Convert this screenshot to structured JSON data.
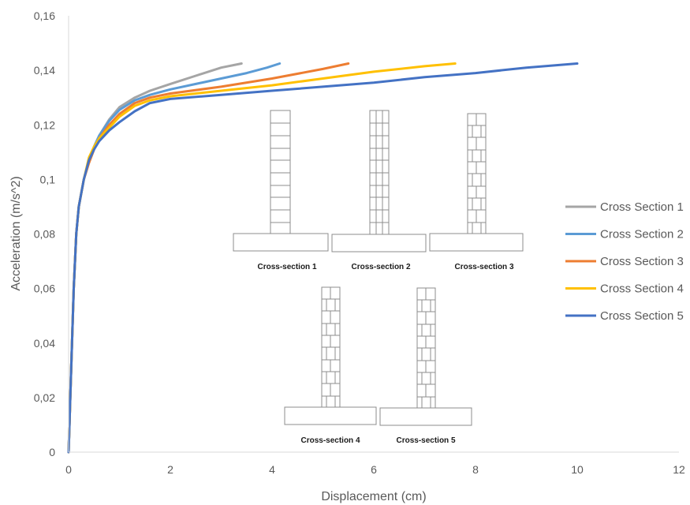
{
  "chart_data": {
    "type": "line",
    "title": "",
    "xlabel": "Displacement (cm)",
    "ylabel": "Acceleration (m/s^2)",
    "xlim": [
      0,
      12
    ],
    "ylim": [
      0,
      0.16
    ],
    "x_ticks": [
      0,
      2,
      4,
      6,
      8,
      10,
      12
    ],
    "x_tick_labels": [
      "0",
      "2",
      "4",
      "6",
      "8",
      "10",
      "12"
    ],
    "y_ticks": [
      0,
      0.02,
      0.04,
      0.06,
      0.08,
      0.1,
      0.12,
      0.14,
      0.16
    ],
    "y_tick_labels": [
      "0",
      "0,02",
      "0,04",
      "0,06",
      "0,08",
      "0,1",
      "0,12",
      "0,14",
      "0,16"
    ],
    "grid": false,
    "legend_position": "right",
    "series": [
      {
        "name": "Cross Section 1",
        "color": "#a5a5a5",
        "points": [
          [
            0,
            0
          ],
          [
            0.05,
            0.03
          ],
          [
            0.1,
            0.06
          ],
          [
            0.15,
            0.08
          ],
          [
            0.2,
            0.09
          ],
          [
            0.3,
            0.1
          ],
          [
            0.4,
            0.107
          ],
          [
            0.5,
            0.112
          ],
          [
            0.6,
            0.116
          ],
          [
            0.8,
            0.122
          ],
          [
            1.0,
            0.1265
          ],
          [
            1.3,
            0.13
          ],
          [
            1.6,
            0.1325
          ],
          [
            2.0,
            0.135
          ],
          [
            2.5,
            0.138
          ],
          [
            3.0,
            0.141
          ],
          [
            3.4,
            0.1425
          ]
        ]
      },
      {
        "name": "Cross Section 2",
        "color": "#5b9bd5",
        "points": [
          [
            0,
            0
          ],
          [
            0.05,
            0.03
          ],
          [
            0.1,
            0.06
          ],
          [
            0.15,
            0.08
          ],
          [
            0.2,
            0.09
          ],
          [
            0.3,
            0.1
          ],
          [
            0.4,
            0.107
          ],
          [
            0.5,
            0.112
          ],
          [
            0.6,
            0.116
          ],
          [
            0.8,
            0.1215
          ],
          [
            1.0,
            0.1255
          ],
          [
            1.3,
            0.129
          ],
          [
            1.6,
            0.131
          ],
          [
            2.0,
            0.133
          ],
          [
            2.5,
            0.135
          ],
          [
            3.0,
            0.137
          ],
          [
            3.5,
            0.139
          ],
          [
            3.9,
            0.141
          ],
          [
            4.15,
            0.1425
          ]
        ]
      },
      {
        "name": "Cross Section 3",
        "color": "#ed7d31",
        "points": [
          [
            0,
            0
          ],
          [
            0.05,
            0.03
          ],
          [
            0.1,
            0.06
          ],
          [
            0.15,
            0.08
          ],
          [
            0.2,
            0.09
          ],
          [
            0.3,
            0.1
          ],
          [
            0.4,
            0.106
          ],
          [
            0.5,
            0.111
          ],
          [
            0.6,
            0.115
          ],
          [
            0.8,
            0.12
          ],
          [
            1.0,
            0.124
          ],
          [
            1.3,
            0.128
          ],
          [
            1.6,
            0.13
          ],
          [
            2.0,
            0.1315
          ],
          [
            3.0,
            0.134
          ],
          [
            4.0,
            0.137
          ],
          [
            5.0,
            0.1405
          ],
          [
            5.5,
            0.1425
          ]
        ]
      },
      {
        "name": "Cross Section 4",
        "color": "#ffc000",
        "points": [
          [
            0,
            0
          ],
          [
            0.05,
            0.03
          ],
          [
            0.1,
            0.06
          ],
          [
            0.15,
            0.08
          ],
          [
            0.2,
            0.09
          ],
          [
            0.3,
            0.1
          ],
          [
            0.4,
            0.108
          ],
          [
            0.5,
            0.112
          ],
          [
            0.6,
            0.115
          ],
          [
            0.8,
            0.119
          ],
          [
            1.0,
            0.123
          ],
          [
            1.3,
            0.127
          ],
          [
            1.6,
            0.129
          ],
          [
            2.0,
            0.1305
          ],
          [
            3.0,
            0.1325
          ],
          [
            4.0,
            0.1345
          ],
          [
            5.0,
            0.137
          ],
          [
            6.0,
            0.1395
          ],
          [
            7.0,
            0.1415
          ],
          [
            7.6,
            0.1425
          ]
        ]
      },
      {
        "name": "Cross Section 5",
        "color": "#4472c4",
        "points": [
          [
            0,
            0
          ],
          [
            0.05,
            0.03
          ],
          [
            0.1,
            0.06
          ],
          [
            0.15,
            0.08
          ],
          [
            0.2,
            0.09
          ],
          [
            0.3,
            0.1
          ],
          [
            0.4,
            0.107
          ],
          [
            0.5,
            0.111
          ],
          [
            0.6,
            0.114
          ],
          [
            0.8,
            0.118
          ],
          [
            1.0,
            0.121
          ],
          [
            1.3,
            0.125
          ],
          [
            1.6,
            0.128
          ],
          [
            2.0,
            0.1295
          ],
          [
            3.0,
            0.131
          ],
          [
            4.0,
            0.1325
          ],
          [
            5.0,
            0.134
          ],
          [
            6.0,
            0.1355
          ],
          [
            7.0,
            0.1375
          ],
          [
            8.0,
            0.139
          ],
          [
            9.0,
            0.141
          ],
          [
            10.0,
            0.1425
          ]
        ]
      }
    ],
    "inset": {
      "captions": [
        "Cross-section 1",
        "Cross-section 2",
        "Cross-section 3",
        "Cross-section 4",
        "Cross-section 5"
      ]
    }
  }
}
